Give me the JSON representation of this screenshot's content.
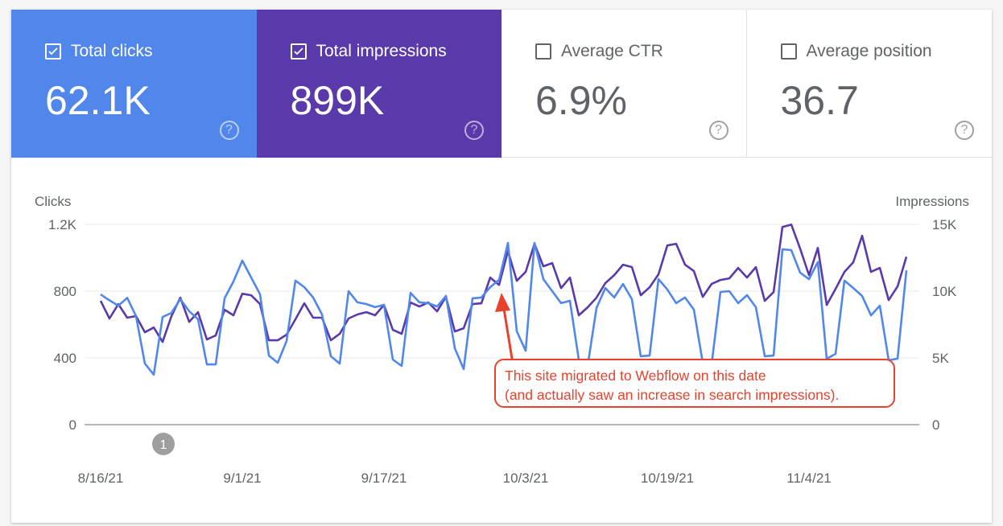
{
  "cards": [
    {
      "label": "Total clicks",
      "value": "62.1K",
      "checked": true,
      "color": "#5187ea"
    },
    {
      "label": "Total impressions",
      "value": "899K",
      "checked": true,
      "color": "#5a3aaa"
    },
    {
      "label": "Average CTR",
      "value": "6.9%",
      "checked": false,
      "color": "#ffffff"
    },
    {
      "label": "Average position",
      "value": "36.7",
      "checked": false,
      "color": "#ffffff"
    }
  ],
  "help_glyph": "?",
  "annotation": {
    "line1": "This site migrated to Webflow on this date",
    "line2": "(and actually saw an increase in search impressions).",
    "color": "#e8412c"
  },
  "marker_label": "1",
  "chart_data": {
    "type": "line",
    "left_axis_label": "Clicks",
    "right_axis_label": "Impressions",
    "left_ticks": [
      "0",
      "400",
      "800",
      "1.2K"
    ],
    "right_ticks": [
      "0",
      "5K",
      "10K",
      "15K"
    ],
    "left_ylim": [
      0,
      1200
    ],
    "right_ylim": [
      0,
      15000
    ],
    "x_tick_labels": [
      "8/16/21",
      "9/1/21",
      "9/17/21",
      "10/3/21",
      "10/19/21",
      "11/4/21"
    ],
    "x_range": [
      "2021-08-16",
      "2021-11-15"
    ],
    "grid": true,
    "series": [
      {
        "name": "Clicks",
        "axis": "left",
        "color": "#5187ea",
        "values": [
          780,
          745,
          713,
          760,
          650,
          366,
          300,
          645,
          670,
          752,
          680,
          632,
          361,
          361,
          757,
          858,
          983,
          882,
          781,
          414,
          371,
          501,
          863,
          824,
          762,
          660,
          410,
          366,
          800,
          733,
          723,
          704,
          718,
          390,
          352,
          790,
          733,
          728,
          708,
          771,
          458,
          333,
          757,
          762,
          824,
          868,
          1089,
          559,
          443,
          1089,
          872,
          800,
          728,
          742,
          390,
          352,
          699,
          819,
          762,
          843,
          752,
          410,
          414,
          872,
          810,
          728,
          762,
          689,
          371,
          361,
          795,
          800,
          728,
          776,
          704,
          410,
          414,
          1051,
          1046,
          911,
          872,
          974,
          395,
          424,
          863,
          819,
          771,
          655,
          713,
          386,
          395,
          925
        ]
      },
      {
        "name": "Impressions",
        "axis": "right",
        "color": "#5a3aaa",
        "values": [
          9270,
          7950,
          9030,
          8010,
          8130,
          6920,
          7280,
          6200,
          8130,
          9510,
          7700,
          8430,
          6380,
          6680,
          8610,
          8190,
          9810,
          9690,
          9030,
          6320,
          6320,
          6740,
          7890,
          9090,
          8010,
          8010,
          6320,
          6800,
          7950,
          8250,
          8430,
          8190,
          8970,
          7100,
          6800,
          9150,
          8850,
          9150,
          8490,
          9570,
          6980,
          7220,
          9030,
          9090,
          11020,
          10470,
          13000,
          10780,
          11440,
          13550,
          11860,
          12100,
          10230,
          11020,
          8190,
          8790,
          9510,
          10600,
          11200,
          11980,
          11800,
          9690,
          10290,
          11260,
          13420,
          13550,
          11980,
          11500,
          9570,
          10540,
          10840,
          10960,
          11740,
          11020,
          11800,
          9270,
          9930,
          14810,
          14990,
          13180,
          11200,
          13240,
          8970,
          10170,
          11440,
          12160,
          14150,
          11440,
          11740,
          9330,
          10350,
          12580
        ]
      }
    ]
  }
}
